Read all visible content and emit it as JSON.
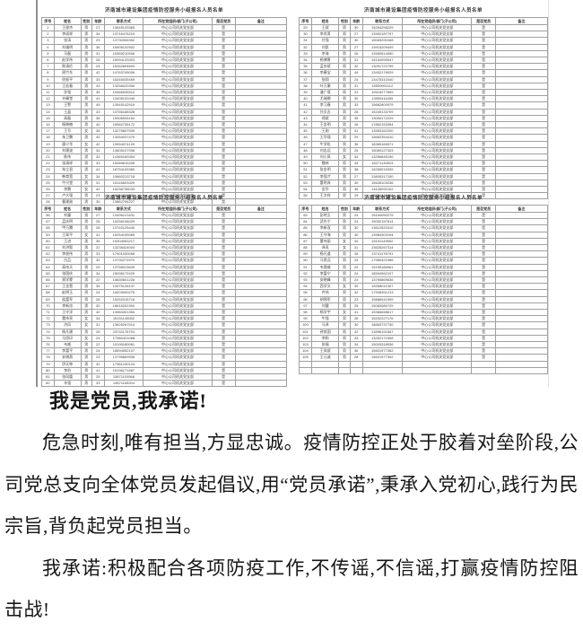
{
  "scan": {
    "title": "济南城市建设集团疫情防控服务小组报名人员名单",
    "headers": [
      "序号",
      "姓名",
      "性别",
      "年龄",
      "联系方式",
      "所在党组织/部门(子公司)",
      "是否党员",
      "备注"
    ],
    "org_value": "中心公司机关党支部",
    "party_value": "是",
    "note_value": "",
    "tables": [
      {
        "start": 1,
        "empty_rows": 0,
        "rows": [
          [
            "王俊杰",
            "男",
            "27",
            "13645133365"
          ],
          [
            "李成祥",
            "男",
            "34",
            "13716476219"
          ],
          [
            "张涛",
            "男",
            "29",
            "13730306392"
          ],
          [
            "刘福明",
            "男",
            "36",
            "15905132502"
          ],
          [
            "马磊",
            "男",
            "31",
            "15369210506"
          ],
          [
            "赵学伟",
            "男",
            "26",
            "15094133303"
          ],
          [
            "陈清伦",
            "男",
            "24",
            "15262604603"
          ],
          [
            "周竹东",
            "男",
            "42",
            "14763745006"
          ],
          [
            "徐振平",
            "男",
            "33",
            "15345035469"
          ],
          [
            "王宏春",
            "男",
            "43",
            "13256020306"
          ],
          [
            "孙强",
            "男",
            "35",
            "15366945512"
          ],
          [
            "许峰堂",
            "男",
            "41",
            "13405131040"
          ],
          [
            "王警",
            "男",
            "45",
            "13545142919"
          ],
          [
            "王晶",
            "男",
            "43",
            "13756188328"
          ],
          [
            "高磊",
            "男",
            "36",
            "15306926154"
          ],
          [
            "杨晓楠",
            "男",
            "40",
            "15962735172"
          ],
          [
            "王号",
            "女",
            "38",
            "13275807539"
          ],
          [
            "朱卫鹏",
            "男",
            "40",
            "13054037475"
          ],
          [
            "唐少华",
            "女",
            "42",
            "13954074129"
          ],
          [
            "刘建波",
            "男",
            "34",
            "13605107936"
          ],
          [
            "陈伟",
            "男",
            "32",
            "14369169354"
          ],
          [
            "张清祥",
            "男",
            "33",
            "15069615205"
          ],
          [
            "朱立君",
            "男",
            "41",
            "18754105369"
          ],
          [
            "韩育宽",
            "女",
            "34",
            "15660213718"
          ],
          [
            "牛兴堂",
            "男",
            "31",
            "15145603329"
          ],
          [
            "李鹏",
            "女",
            "42",
            "15236736033"
          ],
          [
            "卢大强",
            "男",
            "23",
            "15264254300"
          ],
          [
            "曹建勋",
            "男",
            "30",
            "13862754227"
          ]
        ]
      },
      {
        "start": 29,
        "empty_rows": 0,
        "rows": [
          [
            "王斌",
            "男",
            "30",
            "15254258229"
          ],
          [
            "李肖男",
            "男",
            "27",
            "13952187797"
          ],
          [
            "付强",
            "男",
            "30",
            "15083290168"
          ],
          [
            "刘凯",
            "男",
            "27",
            "13915209449"
          ],
          [
            "李海",
            "男",
            "26",
            "13990514050"
          ],
          [
            "杨博景",
            "男",
            "31",
            "15154090547"
          ],
          [
            "孟庆斌",
            "男",
            "32",
            "13091722795"
          ],
          [
            "李康宝",
            "男",
            "44",
            "13452178929"
          ],
          [
            "张翔",
            "男",
            "24",
            "13475310340"
          ],
          [
            "叶万康",
            "男",
            "31",
            "15539901112"
          ],
          [
            "潘广境",
            "男",
            "23",
            "19515277699"
          ],
          [
            "尤瑞卿",
            "男",
            "30",
            "13995111659"
          ],
          [
            "李习春",
            "男",
            "33",
            "15662800979"
          ],
          [
            "孙文志",
            "男",
            "28",
            "15245133709"
          ],
          [
            "郑斌",
            "男",
            "35",
            "13054172229"
          ],
          [
            "王金明",
            "男",
            "26",
            "17862153394"
          ],
          [
            "王刚",
            "男",
            "31",
            "13553162200"
          ],
          [
            "王华强",
            "男",
            "29",
            "15662354410"
          ],
          [
            "牛学松",
            "男",
            "36",
            "18369165071"
          ],
          [
            "刘志远",
            "男",
            "25",
            "15069127303"
          ],
          [
            "刘小凤",
            "女",
            "34",
            "13256845190"
          ],
          [
            "魏林",
            "男",
            "34",
            "18271130523"
          ],
          [
            "张金明",
            "男",
            "38",
            "15269015339"
          ],
          [
            "李强才",
            "男",
            "27",
            "13805317150"
          ],
          [
            "董明泽",
            "男",
            "30",
            "15628103236"
          ],
          [
            "金华",
            "男",
            "35",
            "13145092102"
          ],
          [
            "王文祥",
            "男",
            "29",
            "15254136468"
          ]
        ]
      },
      {
        "start": 56,
        "empty_rows": 0,
        "rows": [
          [
            "刘童",
            "男",
            "27",
            "13496121631"
          ],
          [
            "孟庆明",
            "男",
            "28",
            "15256106029"
          ],
          [
            "甲万腾",
            "男",
            "26",
            "13740125440"
          ],
          [
            "王翠平",
            "女",
            "41",
            "15254195065"
          ],
          [
            "王进",
            "男",
            "35",
            "15304053217"
          ],
          [
            "刘洪毅",
            "男",
            "22",
            "13235424004"
          ],
          [
            "李俊伟",
            "男",
            "33",
            "17901030065"
          ],
          [
            "吕品",
            "男",
            "32",
            "13730272970"
          ],
          [
            "高伟天",
            "男",
            "29",
            "13758313639"
          ],
          [
            "张国庆",
            "男",
            "34",
            "15098172429"
          ],
          [
            "郑学蒙",
            "男",
            "22",
            "15830601226"
          ],
          [
            "王金营",
            "男",
            "35",
            "13075128137"
          ],
          [
            "赵明玉",
            "男",
            "24",
            "15203090275"
          ],
          [
            "侯富军",
            "男",
            "26",
            "15252015716"
          ],
          [
            "李新忠",
            "男",
            "30",
            "18615202300"
          ],
          [
            "王守洋",
            "男",
            "40",
            "13984301354"
          ],
          [
            "董伟亮",
            "女",
            "34",
            "15151145052"
          ],
          [
            "济风",
            "女",
            "31",
            "13625267514"
          ],
          [
            "杨凡建",
            "男",
            "26",
            "13741176793"
          ],
          [
            "马思印",
            "女",
            "24",
            "17980421068"
          ],
          [
            "韦威",
            "男",
            "22",
            "15195180061"
          ],
          [
            "李富平",
            "男",
            "24",
            "18594052107"
          ],
          [
            "安晓燕",
            "男",
            "23",
            "13795869536"
          ],
          [
            "伊天坤",
            "男",
            "32",
            "17961230124"
          ],
          [
            "李伯",
            "男",
            "41",
            "15196171567"
          ],
          [
            "张凤凰",
            "男",
            "25",
            "13671103568"
          ],
          [
            "辛强",
            "男",
            "33",
            "13871165204"
          ]
        ]
      },
      {
        "start": 83,
        "empty_rows": 2,
        "rows": [
          [
            "彭明玉",
            "男",
            "24",
            "15154050275"
          ],
          [
            "武先宁",
            "男",
            "24",
            "15052157614"
          ],
          [
            "李新双",
            "男",
            "30",
            "13612520310"
          ],
          [
            "王守海",
            "男",
            "40",
            "13984303194"
          ],
          [
            "董伟丽",
            "女",
            "34",
            "15151149552"
          ],
          [
            "泽风",
            "女",
            "31",
            "13625267314"
          ],
          [
            "杨凡道",
            "男",
            "26",
            "13741176791"
          ],
          [
            "马思远",
            "男",
            "24",
            "17980421966"
          ],
          [
            "韦建威",
            "男",
            "22",
            "15195186961"
          ],
          [
            "李富宁",
            "男",
            "24",
            "18594952107"
          ],
          [
            "安晓峰",
            "男",
            "23",
            "13795869636"
          ],
          [
            "西学文",
            "女",
            "30",
            "15268011307"
          ],
          [
            "齐伟",
            "男",
            "32",
            "17908351213"
          ],
          [
            "胡锦军",
            "男",
            "23",
            "15886941909"
          ],
          [
            "刘健",
            "男",
            "25",
            "15083080725"
          ],
          [
            "杨学宇",
            "女",
            "41",
            "15366658617"
          ],
          [
            "牛强",
            "男",
            "26",
            "15202227176"
          ],
          [
            "马泽",
            "男",
            "30",
            "18663737730"
          ],
          [
            "钟其国",
            "男",
            "42",
            "13596191567"
          ],
          [
            "李和",
            "男",
            "33",
            "13252171598"
          ],
          [
            "张福",
            "男",
            "34",
            "15003318936"
          ],
          [
            "王凤斌",
            "男",
            "36",
            "15821977362"
          ],
          [
            "王元诚",
            "男",
            "28",
            "15621977302"
          ]
        ]
      }
    ]
  },
  "article": {
    "heading": "我是党员,我承诺!",
    "paragraphs": [
      "危急时刻,唯有担当,方显忠诚。疫情防控正处于胶着对垒阶段,公司党总支向全体党员发起倡议,用“党员承诺”,秉承入党初心,践行为民宗旨,背负起党员担当。",
      "我承诺:积极配合各项防疫工作,不传谣,不信谣,打赢疫情防控阻击战!"
    ]
  },
  "colors": {
    "page_background": "#ffffff",
    "scan_edge": "#8f8f8f",
    "table_border": "#a0a0a0",
    "table_text": "#474747",
    "article_text": "#161616"
  }
}
